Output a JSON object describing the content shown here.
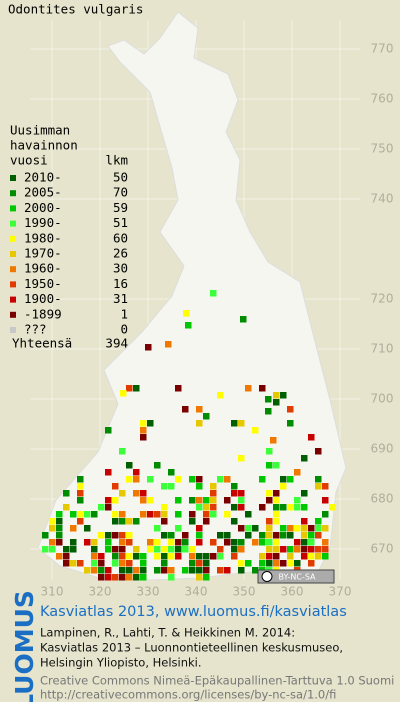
{
  "title": "Odontites vulgaris",
  "legend": {
    "heading": [
      "Uusimman",
      "havainnon",
      "vuosi"
    ],
    "count_heading": "lkm",
    "entries": [
      {
        "label": "2010-",
        "count": 50,
        "color": "#005f00"
      },
      {
        "label": "2005-",
        "count": 70,
        "color": "#008c00"
      },
      {
        "label": "2000-",
        "count": 59,
        "color": "#00c800"
      },
      {
        "label": "1990-",
        "count": 51,
        "color": "#3cff3c"
      },
      {
        "label": "1980-",
        "count": 60,
        "color": "#ffff00"
      },
      {
        "label": "1970-",
        "count": 26,
        "color": "#e6c800"
      },
      {
        "label": "1960-",
        "count": 30,
        "color": "#f07800"
      },
      {
        "label": "1950-",
        "count": 16,
        "color": "#e03c00"
      },
      {
        "label": "1900-",
        "count": 31,
        "color": "#c80000"
      },
      {
        "label": "-1899",
        "count": 1,
        "color": "#7a0000"
      },
      {
        "label": "???",
        "count": 0,
        "color": "#c8c8c8"
      }
    ],
    "total_label": "Yhteensä",
    "total": 394
  },
  "grid": {
    "x_labels": [
      310,
      320,
      330,
      340,
      350,
      360,
      370
    ],
    "y_labels": [
      770,
      760,
      750,
      740,
      720,
      710,
      700,
      690,
      680,
      670
    ]
  },
  "badge": "BY-NC-SA",
  "footer": {
    "brand": "LUOMUS",
    "headline": "Kasviatlas 2013, www.luomus.fi/kasviatlas",
    "citation": [
      "Lampinen, R., Lahti, T. & Heikkinen M. 2014:",
      "Kasviatlas 2013 – Luonnontieteellinen keskusmuseo,",
      "Helsingin Yliopisto, Helsinki."
    ],
    "license": [
      "Creative Commons Nimeä-Epäkaupallinen-Tarttuva 1.0 Suomi",
      "http://creativecommons.org/licenses/by-nc-sa/1.0/fi"
    ]
  }
}
